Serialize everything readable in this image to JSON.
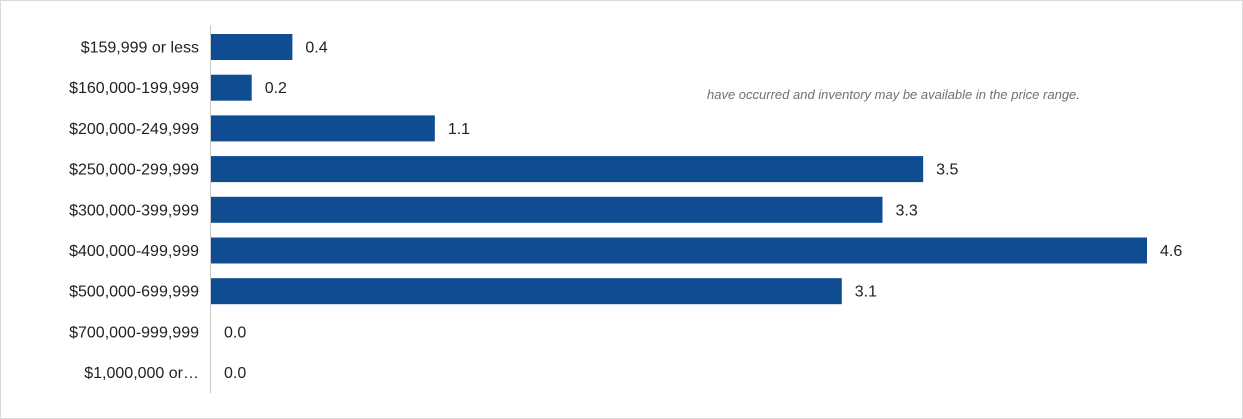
{
  "note": "have occurred and inventory may be available in the price range.",
  "colors": {
    "bar": "#0f4c92",
    "axis": "#c8c8c8"
  },
  "chart_data": {
    "type": "bar",
    "orientation": "horizontal",
    "categories": [
      "$159,999 or less",
      "$160,000-199,999",
      "$200,000-249,999",
      "$250,000-299,999",
      "$300,000-399,999",
      "$400,000-499,999",
      "$500,000-699,999",
      "$700,000-999,999",
      "$1,000,000 or…"
    ],
    "values": [
      0.4,
      0.2,
      1.1,
      3.5,
      3.3,
      4.6,
      3.1,
      0.0,
      0.0
    ],
    "value_labels": [
      "0.4",
      "0.2",
      "1.1",
      "3.5",
      "3.3",
      "4.6",
      "3.1",
      "0.0",
      "0.0"
    ],
    "xlim": [
      0,
      4.6
    ],
    "grid": false,
    "legend": "none"
  }
}
